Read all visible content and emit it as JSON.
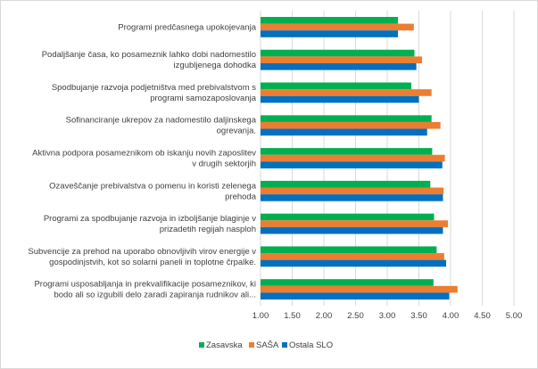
{
  "chart_data": {
    "type": "bar",
    "orientation": "horizontal",
    "title": "",
    "xlabel": "",
    "ylabel": "",
    "xlim": [
      1.0,
      5.0
    ],
    "xticks": [
      1.0,
      1.5,
      2.0,
      2.5,
      3.0,
      3.5,
      4.0,
      4.5,
      5.0
    ],
    "xtick_labels": [
      "1.00",
      "1.50",
      "2.00",
      "2.50",
      "3.00",
      "3.50",
      "4.00",
      "4.50",
      "5.00"
    ],
    "grid": true,
    "legend_position": "bottom",
    "categories": [
      [
        "Programi predčasnega upokojevanja"
      ],
      [
        "Podaljšanje časa, ko posameznik lahko dobi nadomestilo",
        "izgubljenega dohodka"
      ],
      [
        "Spodbujanje razvoja podjetništva med prebivalstvom s",
        "programi samozaposlovanja"
      ],
      [
        "Sofinanciranje ukrepov za nadomestilo daljinskega",
        "ogrevanja."
      ],
      [
        "Aktivna podpora posameznikom ob iskanju novih zaposlitev",
        "v drugih sektorjih"
      ],
      [
        "Ozaveščanje prebivalstva o pomenu in koristi zelenega",
        "prehoda"
      ],
      [
        "Programi za spodbujanje razvoja in izboljšanje blaginje v",
        "prizadetih regijah nasploh"
      ],
      [
        "Subvencije za prehod na uporabo obnovljivih virov energije v",
        "gospodinjstvih, kot so solarni paneli in toplotne črpalke."
      ],
      [
        "Programi usposabljanja in prekvalifikacije posameznikov, ki",
        "bodo ali so izgubili delo zaradi zapiranja rudnikov ali..."
      ]
    ],
    "series": [
      {
        "name": "Zasavska",
        "color": "#00B050",
        "values": [
          3.17,
          3.43,
          3.38,
          3.7,
          3.71,
          3.68,
          3.74,
          3.78,
          3.73
        ]
      },
      {
        "name": "SAŠA",
        "color": "#ED7D31",
        "values": [
          3.42,
          3.55,
          3.7,
          3.84,
          3.91,
          3.89,
          3.96,
          3.9,
          4.11
        ]
      },
      {
        "name": "Ostala SLO",
        "color": "#0070C0",
        "values": [
          3.17,
          3.46,
          3.5,
          3.63,
          3.87,
          3.88,
          3.88,
          3.93,
          3.98
        ]
      }
    ]
  }
}
